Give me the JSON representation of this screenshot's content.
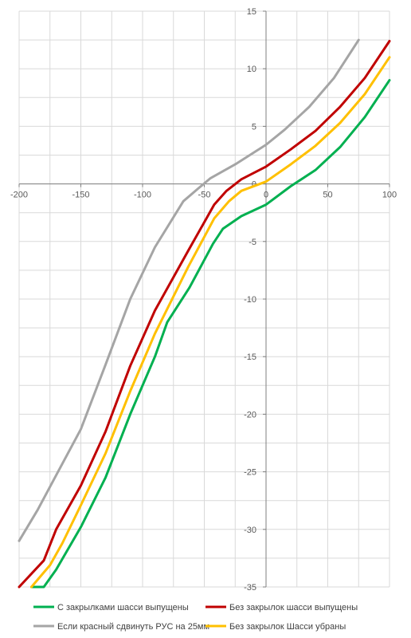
{
  "chart_data": {
    "type": "line",
    "xlim": [
      -200,
      100
    ],
    "ylim": [
      -35,
      15
    ],
    "x_ticks": [
      "-200",
      "-150",
      "-100",
      "-50",
      "0",
      "50",
      "100"
    ],
    "y_ticks": [
      "15",
      "10",
      "5",
      "0",
      "-5",
      "-10",
      "-15",
      "-20",
      "-25",
      "-30",
      "-35"
    ],
    "grid": "vertical and horizontal",
    "legend_position": "bottom",
    "series": [
      {
        "name": "С закрылками шасси выпущены",
        "color": "#00b050",
        "points": [
          [
            -190,
            -35
          ],
          [
            -180,
            -35
          ],
          [
            -170,
            -33.5
          ],
          [
            -150,
            -29.8
          ],
          [
            -130,
            -25.5
          ],
          [
            -110,
            -20
          ],
          [
            -90,
            -15
          ],
          [
            -80,
            -12
          ],
          [
            -62,
            -9
          ],
          [
            -43,
            -5.2
          ],
          [
            -35,
            -3.9
          ],
          [
            -20,
            -2.8
          ],
          [
            0,
            -1.8
          ],
          [
            20,
            -0.2
          ],
          [
            40,
            1.2
          ],
          [
            60,
            3.2
          ],
          [
            80,
            5.8
          ],
          [
            100,
            9
          ]
        ]
      },
      {
        "name": "Без закрылок шасси выпущены",
        "color": "#c00000",
        "points": [
          [
            -200,
            -35
          ],
          [
            -180,
            -32.7
          ],
          [
            -170,
            -30
          ],
          [
            -150,
            -26.2
          ],
          [
            -130,
            -21.5
          ],
          [
            -110,
            -15.8
          ],
          [
            -90,
            -11
          ],
          [
            -63,
            -5.8
          ],
          [
            -42,
            -1.8
          ],
          [
            -32,
            -0.6
          ],
          [
            -20,
            0.4
          ],
          [
            0,
            1.5
          ],
          [
            20,
            3
          ],
          [
            40,
            4.6
          ],
          [
            60,
            6.7
          ],
          [
            80,
            9.2
          ],
          [
            100,
            12.4
          ]
        ]
      },
      {
        "name": "Если красный сдвинуть РУС на 25мм",
        "color": "#a5a5a5",
        "points": [
          [
            -200,
            -31
          ],
          [
            -185,
            -28.3
          ],
          [
            -170,
            -25.3
          ],
          [
            -150,
            -21.3
          ],
          [
            -130,
            -15.7
          ],
          [
            -110,
            -10
          ],
          [
            -90,
            -5.5
          ],
          [
            -67,
            -1.5
          ],
          [
            -55,
            -0.4
          ],
          [
            -45,
            0.5
          ],
          [
            -25,
            1.7
          ],
          [
            0,
            3.4
          ],
          [
            15,
            4.7
          ],
          [
            35,
            6.7
          ],
          [
            55,
            9.2
          ],
          [
            75,
            12.5
          ]
        ]
      },
      {
        "name": "Без закрылок Шасси убраны",
        "color": "#ffc000",
        "points": [
          [
            -190,
            -35
          ],
          [
            -175,
            -33.1
          ],
          [
            -165,
            -31.2
          ],
          [
            -150,
            -27.9
          ],
          [
            -130,
            -23.4
          ],
          [
            -110,
            -18
          ],
          [
            -90,
            -13
          ],
          [
            -63,
            -7.2
          ],
          [
            -42,
            -3
          ],
          [
            -30,
            -1.5
          ],
          [
            -20,
            -0.6
          ],
          [
            0,
            0.2
          ],
          [
            20,
            1.7
          ],
          [
            40,
            3.3
          ],
          [
            60,
            5.3
          ],
          [
            80,
            7.8
          ],
          [
            100,
            11
          ]
        ]
      }
    ]
  }
}
